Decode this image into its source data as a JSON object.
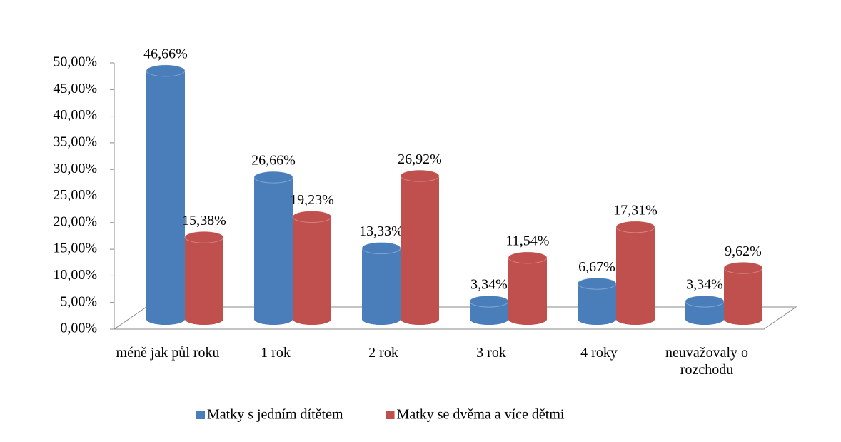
{
  "chart_data": {
    "type": "bar3d",
    "categories": [
      "méně jak půl roku",
      "1 rok",
      "2 rok",
      "3 rok",
      "4 roky",
      "neuvažovaly o rozchodu"
    ],
    "series": [
      {
        "name": "Matky s jedním dítětem",
        "color": "#4a7ebb",
        "values": [
          46.66,
          26.66,
          13.33,
          3.34,
          6.67,
          3.34
        ],
        "value_labels": [
          "46,66%",
          "26,66%",
          "13,33%",
          "3,34%",
          "6,67%",
          "3,34%"
        ]
      },
      {
        "name": "Matky se dvěma a více dětmi",
        "color": "#c0504d",
        "values": [
          15.38,
          19.23,
          26.92,
          11.54,
          17.31,
          9.62
        ],
        "value_labels": [
          "15,38%",
          "19,23%",
          "26,92%",
          "11,54%",
          "17,31%",
          "9,62%"
        ]
      }
    ],
    "ylim": [
      0,
      50
    ],
    "yticks": [
      {
        "value": 0,
        "label": "0,00%"
      },
      {
        "value": 5,
        "label": "5,00%"
      },
      {
        "value": 10,
        "label": "10,00%"
      },
      {
        "value": 15,
        "label": "15,00%"
      },
      {
        "value": 20,
        "label": "20,00%"
      },
      {
        "value": 25,
        "label": "25,00%"
      },
      {
        "value": 30,
        "label": "30,00%"
      },
      {
        "value": 35,
        "label": "35,00%"
      },
      {
        "value": 40,
        "label": "40,00%"
      },
      {
        "value": 45,
        "label": "45,00%"
      },
      {
        "value": 50,
        "label": "50,00%"
      }
    ],
    "legend": "bottom"
  }
}
